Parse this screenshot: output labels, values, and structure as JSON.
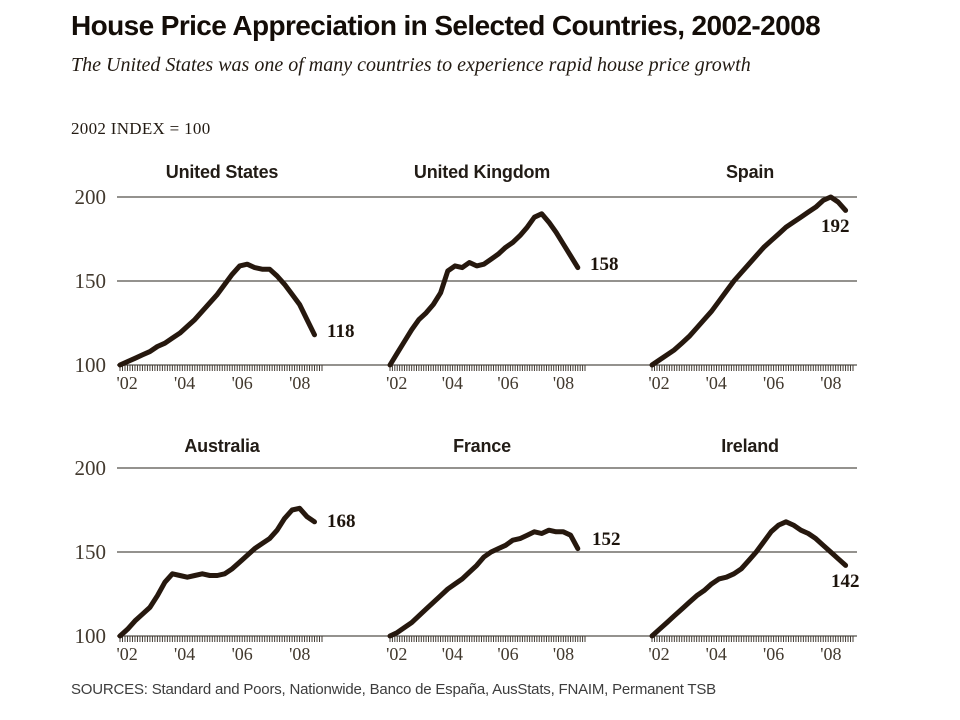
{
  "header": {
    "title": "House Price Appreciation in Selected Countries, 2002-2008",
    "subtitle": "The United States was one of many countries to experience rapid house price growth",
    "index_note": "2002 INDEX = 100"
  },
  "footer": {
    "sources": "SOURCES: Standard and Poors, Nationwide, Banco de España, AusStats, FNAIM, Permanent TSB"
  },
  "colors": {
    "line": "#26180e",
    "grid": "#55504a",
    "tick": "#433c34",
    "axis_label": "#42392e",
    "text": "#140d08"
  },
  "chart_data": {
    "type": "line",
    "title": "House Price Appreciation in Selected Countries, 2002-2008",
    "subtitle": "The United States was one of many countries to experience rapid house price growth",
    "index_note": "2002 INDEX = 100",
    "grid": true,
    "ylim": [
      100,
      200
    ],
    "y_ticks": [
      "200",
      "150",
      "100"
    ],
    "x_tick_labels": [
      "'02",
      "'04",
      "'06",
      "'08"
    ],
    "x_start_year": 2002,
    "x_step_years": 0.25,
    "axis_span_years": 6.75,
    "panels": [
      {
        "country": "United States",
        "end_label": "118",
        "values": [
          100,
          102,
          104,
          106,
          108,
          111,
          113,
          116,
          119,
          123,
          127,
          132,
          137,
          142,
          148,
          154,
          159,
          160,
          158,
          157,
          157,
          153,
          148,
          142,
          136,
          127,
          118
        ]
      },
      {
        "country": "United Kingdom",
        "end_label": "158",
        "values": [
          100,
          107,
          114,
          121,
          127,
          131,
          136,
          143,
          156,
          159,
          158,
          161,
          159,
          160,
          163,
          166,
          170,
          173,
          177,
          182,
          188,
          190,
          185,
          179,
          172,
          165,
          158
        ]
      },
      {
        "country": "Spain",
        "end_label": "192",
        "values": [
          100,
          103,
          106,
          109,
          113,
          117,
          122,
          127,
          132,
          138,
          144,
          150,
          155,
          160,
          165,
          170,
          174,
          178,
          182,
          185,
          188,
          191,
          194,
          198,
          200,
          197,
          192
        ]
      },
      {
        "country": "Australia",
        "end_label": "168",
        "values": [
          100,
          104,
          109,
          113,
          117,
          124,
          132,
          137,
          136,
          135,
          136,
          137,
          136,
          136,
          137,
          140,
          144,
          148,
          152,
          155,
          158,
          163,
          170,
          175,
          176,
          171,
          168
        ]
      },
      {
        "country": "France",
        "end_label": "152",
        "values": [
          100,
          102,
          105,
          108,
          112,
          116,
          120,
          124,
          128,
          131,
          134,
          138,
          142,
          147,
          150,
          152,
          154,
          157,
          158,
          160,
          162,
          161,
          163,
          162,
          162,
          160,
          152
        ]
      },
      {
        "country": "Ireland",
        "end_label": "142",
        "values": [
          100,
          104,
          108,
          112,
          116,
          120,
          124,
          127,
          131,
          134,
          135,
          137,
          140,
          145,
          150,
          156,
          162,
          166,
          168,
          166,
          163,
          161,
          158,
          154,
          150,
          146,
          142
        ]
      }
    ]
  }
}
